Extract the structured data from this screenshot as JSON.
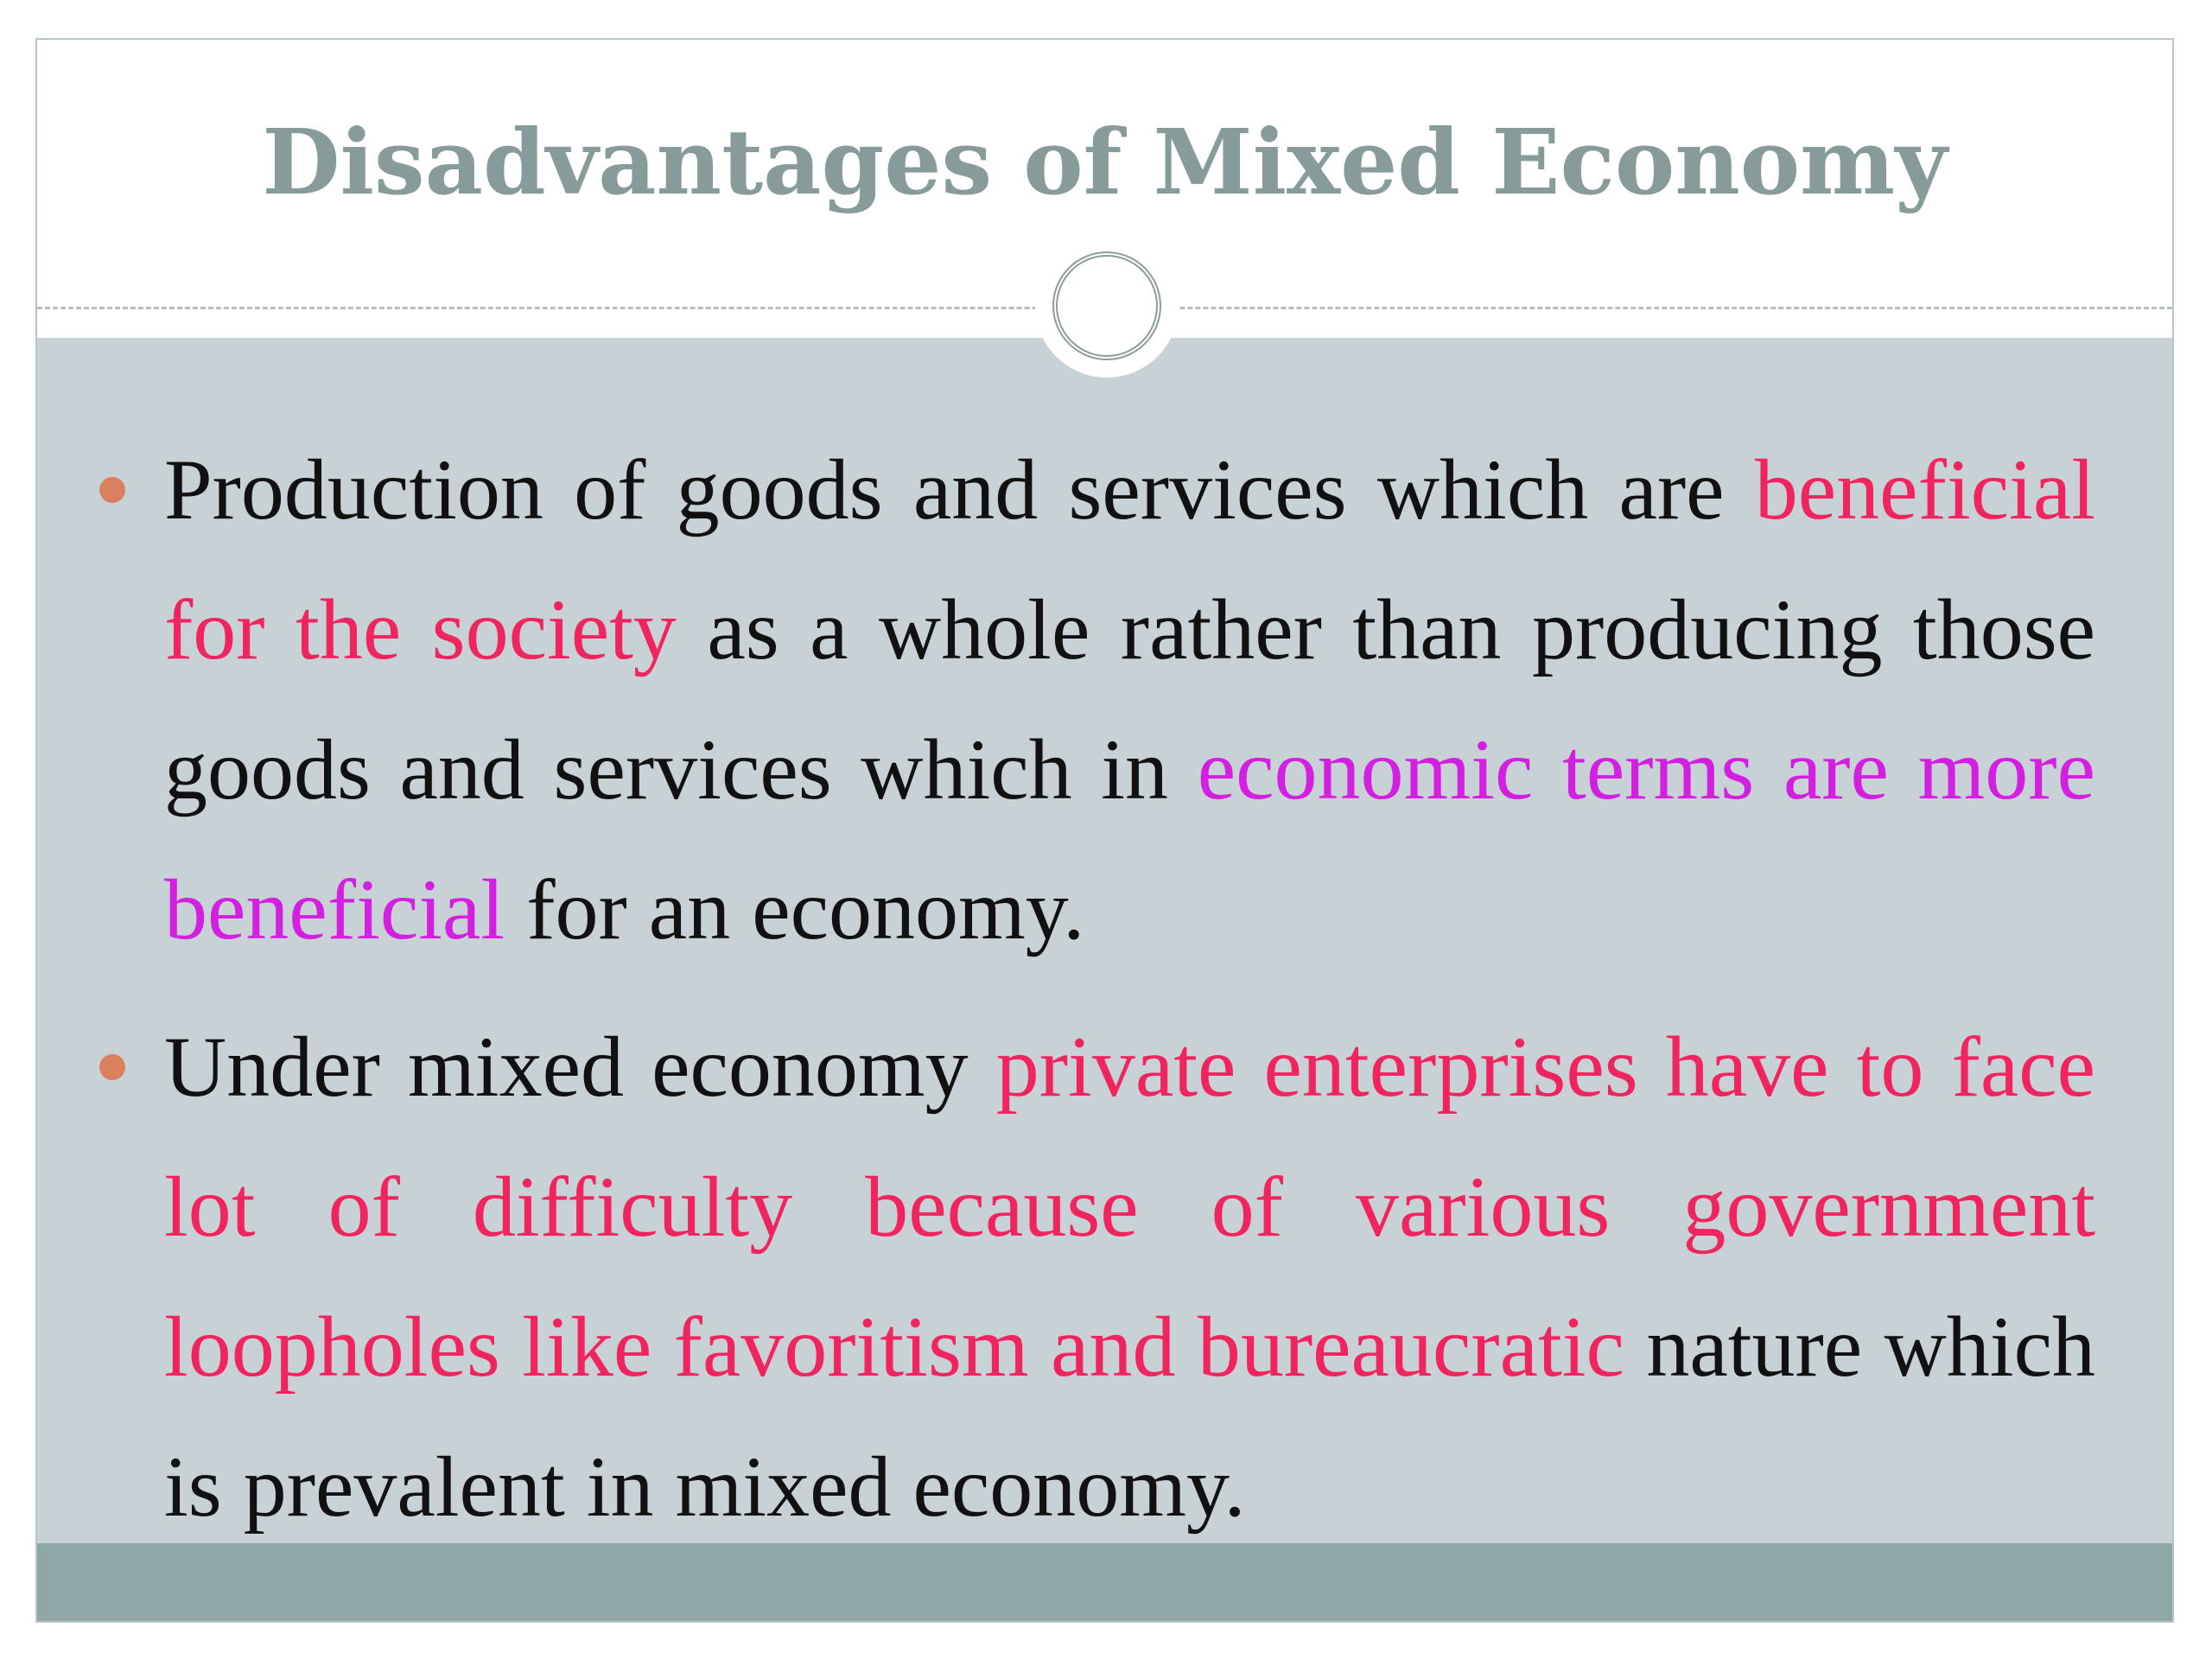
{
  "title": "Disadvantages of Mixed Economy",
  "bullet_color": "#d9805f",
  "bullets": [
    {
      "segments": [
        {
          "text": "Production of goods and services which are ",
          "color": "#111111"
        },
        {
          "text": "beneficial for the society",
          "color": "#f0245e"
        },
        {
          "text": " as a whole rather than producing those goods and services which in ",
          "color": "#111111"
        },
        {
          "text": "economic terms are more beneficial",
          "color": "#d21fe0"
        },
        {
          "text": " for an economy.",
          "color": "#111111"
        }
      ]
    },
    {
      "segments": [
        {
          "text": "Under mixed economy ",
          "color": "#111111"
        },
        {
          "text": "private enterprises have to face lot of difficulty because of various government loopholes like favoritism and bureaucratic",
          "color": "#f0245e"
        },
        {
          "text": " nature which is prevalent in mixed economy.",
          "color": "#111111"
        }
      ]
    }
  ]
}
